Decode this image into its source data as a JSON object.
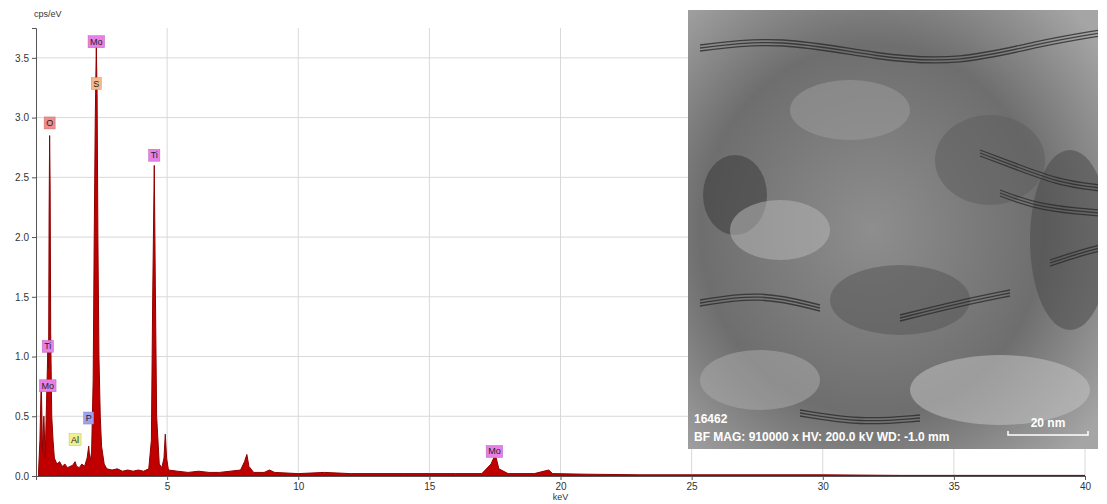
{
  "chart_data": {
    "type": "area",
    "x_label": "keV",
    "y_label": "cps/eV",
    "color": "#c00000",
    "grid": true,
    "xlim": [
      0,
      40
    ],
    "xticks": [
      5,
      10,
      15,
      20,
      25,
      30,
      35,
      40
    ],
    "ylim": [
      0,
      3.75
    ],
    "yticks": [
      {
        "value": 0,
        "label": "0.0"
      },
      0.5,
      {
        "value": 1,
        "label": "1.0"
      },
      1.5,
      {
        "value": 2,
        "label": "2.0"
      },
      2.5,
      {
        "value": 3,
        "label": "3.0"
      },
      3.5
    ],
    "x": [
      0.1,
      0.15,
      0.2,
      0.25,
      0.3,
      0.35,
      0.4,
      0.45,
      0.48,
      0.5,
      0.52,
      0.54,
      0.56,
      0.6,
      0.65,
      0.7,
      0.8,
      0.9,
      1.0,
      1.1,
      1.2,
      1.3,
      1.4,
      1.49,
      1.55,
      1.65,
      1.75,
      1.85,
      1.95,
      2.01,
      2.06,
      2.12,
      2.18,
      2.22,
      2.26,
      2.3,
      2.33,
      2.36,
      2.4,
      2.45,
      2.5,
      2.6,
      2.7,
      2.9,
      3.1,
      3.3,
      3.5,
      3.7,
      3.9,
      4.1,
      4.3,
      4.4,
      4.45,
      4.51,
      4.55,
      4.6,
      4.7,
      4.8,
      4.88,
      4.93,
      4.98,
      5.05,
      5.4,
      5.8,
      6.2,
      6.6,
      7.0,
      7.4,
      7.8,
      7.95,
      8.04,
      8.12,
      8.3,
      8.7,
      8.9,
      9.1,
      10,
      11,
      12,
      13,
      14,
      15,
      16,
      17,
      17.35,
      17.45,
      17.55,
      17.65,
      18,
      19,
      19.55,
      19.7,
      21,
      23,
      25,
      27,
      30,
      33,
      36,
      40
    ],
    "values": [
      0.05,
      0.3,
      0.8,
      0.2,
      0.5,
      0.15,
      0.6,
      1.05,
      0.9,
      2.2,
      2.85,
      2.4,
      1.2,
      0.5,
      0.3,
      0.15,
      0.1,
      0.12,
      0.08,
      0.1,
      0.07,
      0.08,
      0.09,
      0.12,
      0.08,
      0.07,
      0.1,
      0.08,
      0.15,
      0.25,
      0.12,
      0.2,
      0.8,
      2.0,
      3.0,
      3.6,
      3.2,
      2.0,
      1.0,
      0.5,
      0.25,
      0.1,
      0.06,
      0.05,
      0.06,
      0.04,
      0.05,
      0.04,
      0.05,
      0.04,
      0.06,
      0.3,
      1.5,
      2.6,
      1.6,
      0.5,
      0.1,
      0.07,
      0.15,
      0.35,
      0.15,
      0.05,
      0.04,
      0.03,
      0.04,
      0.03,
      0.03,
      0.04,
      0.05,
      0.12,
      0.18,
      0.08,
      0.03,
      0.03,
      0.05,
      0.03,
      0.02,
      0.03,
      0.02,
      0.02,
      0.02,
      0.02,
      0.02,
      0.02,
      0.1,
      0.15,
      0.15,
      0.06,
      0.02,
      0.02,
      0.05,
      0.02,
      0.015,
      0.01,
      0.01,
      0.01,
      0.01,
      0.005,
      0.005,
      0.005
    ],
    "annotations": [
      {
        "text": "Mo",
        "x": 2.3,
        "y": 3.63,
        "color": "#e680e6"
      },
      {
        "text": "S",
        "x": 2.3,
        "y": 3.28,
        "color": "#f5b98a"
      },
      {
        "text": "O",
        "x": 0.52,
        "y": 2.95,
        "color": "#f08c8c"
      },
      {
        "text": "Ti",
        "x": 4.51,
        "y": 2.68,
        "color": "#e680e6"
      },
      {
        "text": "Ti",
        "x": 0.45,
        "y": 1.08,
        "color": "#e680e6"
      },
      {
        "text": "Mo",
        "x": 0.45,
        "y": 0.75,
        "color": "#e680e6"
      },
      {
        "text": "P",
        "x": 2.01,
        "y": 0.48,
        "color": "#a0a0f0"
      },
      {
        "text": "Al",
        "x": 1.49,
        "y": 0.3,
        "color": "#f0f08c"
      },
      {
        "text": "Mo",
        "x": 17.48,
        "y": 0.2,
        "color": "#e680e6"
      }
    ]
  },
  "inset": {
    "id": "16462",
    "caption": "BF MAG: 910000 x HV: 200.0 kV WD: -1.0 mm",
    "scale_bar": "20 nm"
  }
}
